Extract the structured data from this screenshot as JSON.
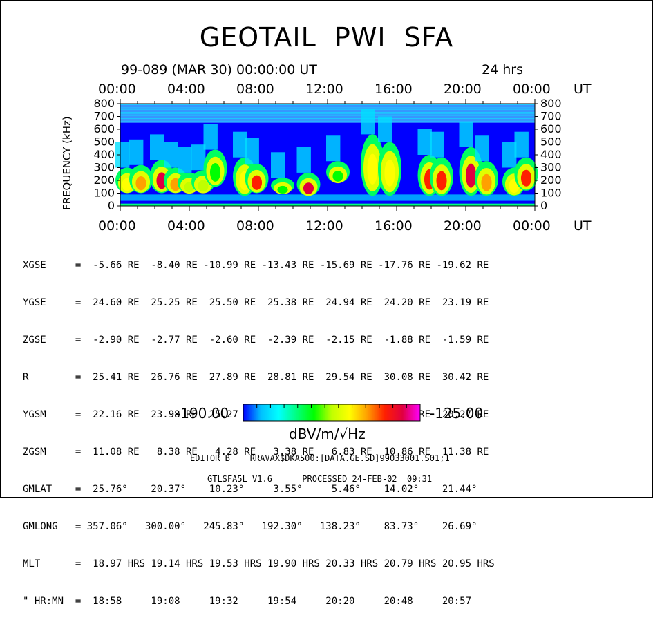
{
  "title": "GEOTAIL  PWI  SFA",
  "date_line": "99-089 (MAR 30) 00:00:00 UT",
  "span": "24 hrs",
  "chart_data": {
    "type": "heatmap",
    "title": "GEOTAIL  PWI  SFA",
    "xlabel": "UT",
    "ylabel": "FREQUENCY (kHz)",
    "x_ticks": [
      "00:00",
      "04:00",
      "08:00",
      "12:00",
      "16:00",
      "20:00",
      "00:00"
    ],
    "x_unit": "UT",
    "x_range_hours": [
      0,
      24
    ],
    "y_ticks": [
      0,
      100,
      200,
      300,
      400,
      500,
      600,
      700,
      800
    ],
    "ylim": [
      0,
      800
    ],
    "color_scale": {
      "min": "-190.00",
      "max": "-125.00",
      "unit": "dBV/m/√Hz",
      "colors": [
        "#0000ff",
        "#00c0ff",
        "#00ffff",
        "#00ff80",
        "#00ff00",
        "#c0ff00",
        "#ffff00",
        "#ffa000",
        "#ff2000",
        "#e00040",
        "#ff00ff"
      ]
    },
    "emission_bursts": [
      {
        "t": 0.4,
        "f_low": 100,
        "f_high": 300,
        "level": 0.55
      },
      {
        "t": 1.2,
        "f_low": 100,
        "f_high": 320,
        "level": 0.7
      },
      {
        "t": 2.4,
        "f_low": 100,
        "f_high": 360,
        "level": 0.85
      },
      {
        "t": 3.2,
        "f_low": 100,
        "f_high": 300,
        "level": 0.7
      },
      {
        "t": 4.0,
        "f_low": 100,
        "f_high": 260,
        "level": 0.5
      },
      {
        "t": 4.8,
        "f_low": 100,
        "f_high": 280,
        "level": 0.5
      },
      {
        "t": 5.5,
        "f_low": 150,
        "f_high": 440,
        "level": 0.35
      },
      {
        "t": 7.2,
        "f_low": 80,
        "f_high": 380,
        "level": 0.6
      },
      {
        "t": 7.9,
        "f_low": 100,
        "f_high": 330,
        "level": 0.75
      },
      {
        "t": 9.4,
        "f_low": 100,
        "f_high": 220,
        "level": 0.4
      },
      {
        "t": 10.9,
        "f_low": 80,
        "f_high": 260,
        "level": 0.85
      },
      {
        "t": 12.6,
        "f_low": 180,
        "f_high": 350,
        "level": 0.35
      },
      {
        "t": 14.6,
        "f_low": 80,
        "f_high": 560,
        "level": 0.55
      },
      {
        "t": 15.6,
        "f_low": 80,
        "f_high": 500,
        "level": 0.6
      },
      {
        "t": 17.9,
        "f_low": 80,
        "f_high": 400,
        "level": 0.8
      },
      {
        "t": 18.6,
        "f_low": 80,
        "f_high": 380,
        "level": 0.75
      },
      {
        "t": 20.3,
        "f_low": 80,
        "f_high": 460,
        "level": 0.85
      },
      {
        "t": 21.2,
        "f_low": 80,
        "f_high": 350,
        "level": 0.7
      },
      {
        "t": 22.8,
        "f_low": 80,
        "f_high": 300,
        "level": 0.55
      },
      {
        "t": 23.5,
        "f_low": 120,
        "f_high": 380,
        "level": 0.8
      }
    ]
  },
  "orbit_table": {
    "rows": [
      "XGSE     =  -5.66 RE  -8.40 RE -10.99 RE -13.43 RE -15.69 RE -17.76 RE -19.62 RE",
      "YGSE     =  24.60 RE  25.25 RE  25.50 RE  25.38 RE  24.94 RE  24.20 RE  23.19 RE",
      "ZGSE     =  -2.90 RE  -2.77 RE  -2.60 RE  -2.39 RE  -2.15 RE  -1.88 RE  -1.59 RE",
      "R        =  25.41 RE  26.76 RE  27.89 RE  28.81 RE  29.54 RE  30.08 RE  30.42 RE",
      "YGSM     =  22.16 RE  23.98 RE  25.27 RE  25.27 RE  24.09 RE  21.71 RE  20.27 RE",
      "ZGSM     =  11.08 RE   8.38 RE   4.28 RE   3.38 RE   6.83 RE  10.86 RE  11.38 RE",
      "GMLAT    =  25.76°    20.37°    10.23°     3.55°     5.46°    14.02°    21.44°",
      "GMLONG   = 357.06°   300.00°   245.83°   192.30°   138.23°    83.73°    26.69°",
      "MLT      =  18.97 HRS 19.14 HRS 19.53 HRS 19.90 HRS 20.33 HRS 20.79 HRS 20.95 HRS",
      "\" HR:MN  =  18:58     19:08     19:32     19:54     20:20     20:48     20:57"
    ]
  },
  "footer": {
    "editor": "EDITOR B    RRAVAX$DKA500:[DATA.GE.SD]99033001.S01;1",
    "version": "GTLSFA5L V1.6      PROCESSED 24-FEB-02  09:31"
  }
}
